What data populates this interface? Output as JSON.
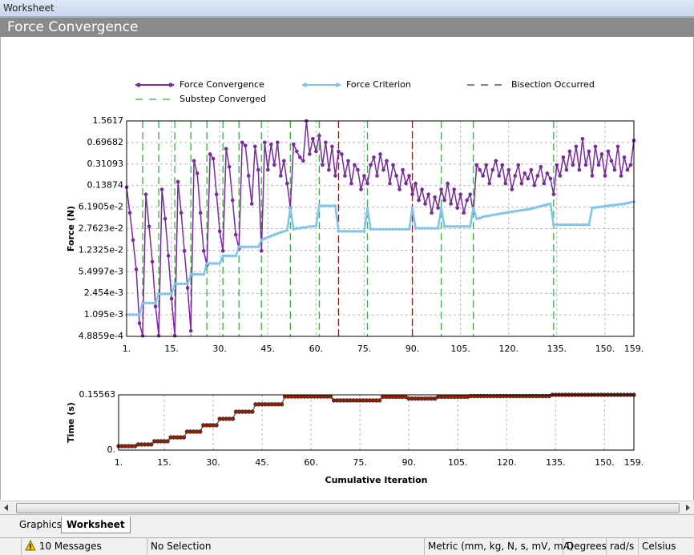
{
  "window_title": "Worksheet",
  "header": "Force Convergence",
  "tabs": [
    "Graphics",
    "Worksheet"
  ],
  "status": {
    "messages": "10 Messages",
    "selection": "No Selection",
    "units": "Metric (mm, kg, N, s, mV, mA)",
    "angle": "Degrees",
    "speed": "rad/s",
    "temperature": "Celsius"
  },
  "chart_data": [
    {
      "type": "line",
      "ylabel": "Force (N)",
      "yscale": "log",
      "grid": true,
      "legend": true,
      "xlim": [
        1,
        159
      ],
      "xticks": [
        {
          "value": 1,
          "label": "1."
        },
        {
          "value": 15,
          "label": "15."
        },
        {
          "value": 30,
          "label": "30."
        },
        {
          "value": 45,
          "label": "45."
        },
        {
          "value": 60,
          "label": "60."
        },
        {
          "value": 75,
          "label": "75."
        },
        {
          "value": 90,
          "label": "90."
        },
        {
          "value": 105,
          "label": "105."
        },
        {
          "value": 120,
          "label": "120."
        },
        {
          "value": 135,
          "label": "135."
        },
        {
          "value": 150,
          "label": "150."
        },
        {
          "value": 159,
          "label": "159."
        }
      ],
      "ylim": [
        0.00048859,
        1.5617
      ],
      "yticks": [
        {
          "value": 0.00048859,
          "label": "4.8859e-4"
        },
        {
          "value": 0.001095,
          "label": "1.095e-3"
        },
        {
          "value": 0.002454,
          "label": "2.454e-3"
        },
        {
          "value": 0.0054997,
          "label": "5.4997e-3"
        },
        {
          "value": 0.012325,
          "label": "1.2325e-2"
        },
        {
          "value": 0.027623,
          "label": "2.7623e-2"
        },
        {
          "value": 0.061905,
          "label": "6.1905e-2"
        },
        0.13874,
        0.31093,
        0.69682,
        1.5617
      ],
      "x": [
        1,
        2,
        3,
        4,
        5,
        6,
        7,
        8,
        9,
        10,
        11,
        12,
        13,
        14,
        15,
        16,
        17,
        18,
        19,
        20,
        21,
        22,
        23,
        24,
        25,
        26,
        27,
        28,
        29,
        30,
        31,
        32,
        33,
        34,
        35,
        36,
        37,
        38,
        39,
        40,
        41,
        42,
        43,
        44,
        45,
        46,
        47,
        48,
        49,
        50,
        51,
        52,
        53,
        54,
        55,
        56,
        57,
        58,
        59,
        60,
        61,
        62,
        63,
        64,
        65,
        66,
        67,
        68,
        69,
        70,
        71,
        72,
        73,
        74,
        75,
        76,
        77,
        78,
        79,
        80,
        81,
        82,
        83,
        84,
        85,
        86,
        87,
        88,
        89,
        90,
        91,
        92,
        93,
        94,
        95,
        96,
        97,
        98,
        99,
        100,
        101,
        102,
        103,
        104,
        105,
        106,
        107,
        108,
        109,
        110,
        111,
        112,
        113,
        114,
        115,
        116,
        117,
        118,
        119,
        120,
        121,
        122,
        123,
        124,
        125,
        126,
        127,
        128,
        129,
        130,
        131,
        132,
        133,
        134,
        135,
        136,
        137,
        138,
        139,
        140,
        141,
        142,
        143,
        144,
        145,
        146,
        147,
        148,
        149,
        150,
        151,
        152,
        153,
        154,
        155,
        156,
        157,
        158,
        159
      ],
      "series": [
        {
          "name": "Force Convergence",
          "color": "#7a2a9e",
          "values": [
            0.13,
            0.05,
            0.018,
            0.006,
            0.0008,
            0.0005,
            0.1,
            0.03,
            0.008,
            0.0015,
            0.0005,
            0.12,
            0.04,
            0.01,
            0.002,
            0.0005,
            0.16,
            0.05,
            0.012,
            0.003,
            0.0006,
            0.35,
            0.22,
            0.05,
            0.012,
            0.007,
            0.45,
            0.38,
            0.1,
            0.025,
            0.012,
            0.55,
            0.28,
            0.08,
            0.022,
            0.013,
            0.7,
            0.62,
            0.2,
            0.07,
            0.6,
            0.25,
            0.012,
            0.7,
            0.25,
            0.65,
            0.3,
            0.7,
            0.2,
            0.35,
            0.15,
            0.06,
            0.65,
            0.5,
            0.4,
            0.35,
            1.56,
            0.45,
            0.8,
            0.5,
            0.9,
            0.3,
            0.7,
            0.25,
            0.6,
            0.2,
            0.5,
            0.45,
            0.2,
            0.35,
            0.15,
            0.3,
            0.25,
            0.12,
            0.2,
            0.15,
            0.3,
            0.4,
            0.2,
            0.45,
            0.25,
            0.35,
            0.15,
            0.3,
            0.2,
            0.12,
            0.25,
            0.15,
            0.2,
            0.1,
            0.15,
            0.08,
            0.12,
            0.07,
            0.1,
            0.05,
            0.09,
            0.06,
            0.12,
            0.08,
            0.15,
            0.07,
            0.12,
            0.06,
            0.1,
            0.05,
            0.08,
            0.1,
            0.05,
            0.3,
            0.25,
            0.2,
            0.3,
            0.15,
            0.25,
            0.35,
            0.2,
            0.3,
            0.15,
            0.25,
            0.12,
            0.2,
            0.3,
            0.15,
            0.22,
            0.18,
            0.25,
            0.14,
            0.2,
            0.28,
            0.15,
            0.22,
            0.18,
            0.1,
            0.3,
            0.2,
            0.4,
            0.25,
            0.5,
            0.3,
            0.6,
            0.25,
            0.8,
            0.3,
            0.5,
            0.2,
            0.6,
            0.3,
            0.45,
            0.2,
            0.5,
            0.35,
            0.25,
            0.6,
            0.2,
            0.4,
            0.25,
            0.3,
            0.75
          ]
        },
        {
          "name": "Force Criterion",
          "color": "#7fc6ee",
          "values": [
            0.0011,
            0.0011,
            0.0011,
            0.0011,
            0.0011,
            0.0017,
            0.0017,
            0.0017,
            0.0017,
            0.0017,
            0.0024,
            0.0024,
            0.0024,
            0.0024,
            0.0024,
            0.0035,
            0.0035,
            0.0035,
            0.0035,
            0.0035,
            0.005,
            0.005,
            0.005,
            0.005,
            0.005,
            0.0075,
            0.0075,
            0.0075,
            0.0075,
            0.0075,
            0.01,
            0.01,
            0.01,
            0.01,
            0.01,
            0.014,
            0.014,
            0.014,
            0.014,
            0.014,
            0.014,
            0.014,
            0.018,
            0.019,
            0.02,
            0.021,
            0.022,
            0.023,
            0.024,
            0.025,
            0.026,
            0.06,
            0.027,
            0.028,
            0.028,
            0.029,
            0.029,
            0.03,
            0.03,
            0.031,
            0.065,
            0.065,
            0.065,
            0.065,
            0.065,
            0.065,
            0.025,
            0.025,
            0.025,
            0.025,
            0.025,
            0.025,
            0.025,
            0.025,
            0.025,
            0.06,
            0.027,
            0.027,
            0.027,
            0.027,
            0.027,
            0.027,
            0.027,
            0.027,
            0.027,
            0.027,
            0.027,
            0.027,
            0.027,
            0.06,
            0.028,
            0.028,
            0.028,
            0.028,
            0.028,
            0.028,
            0.028,
            0.028,
            0.06,
            0.03,
            0.03,
            0.03,
            0.03,
            0.03,
            0.03,
            0.03,
            0.03,
            0.03,
            0.06,
            0.04,
            0.041,
            0.043,
            0.044,
            0.045,
            0.046,
            0.047,
            0.048,
            0.049,
            0.05,
            0.051,
            0.052,
            0.053,
            0.054,
            0.055,
            0.056,
            0.057,
            0.058,
            0.06,
            0.062,
            0.064,
            0.066,
            0.068,
            0.07,
            0.032,
            0.032,
            0.032,
            0.032,
            0.032,
            0.032,
            0.032,
            0.032,
            0.032,
            0.032,
            0.032,
            0.032,
            0.06,
            0.061,
            0.062,
            0.063,
            0.064,
            0.065,
            0.066,
            0.067,
            0.068,
            0.069,
            0.07,
            0.072,
            0.074,
            0.076
          ]
        }
      ],
      "events": [
        {
          "name": "Bisection Occurred",
          "color": "#8b1a1a",
          "x": [
            67,
            90
          ]
        },
        {
          "name": "Substep Converged",
          "color": "#3cb043",
          "x": [
            6,
            11,
            16,
            21,
            26,
            31,
            36,
            43,
            52,
            61,
            76,
            99,
            109,
            134
          ]
        }
      ]
    },
    {
      "type": "line",
      "ylabel": "Time (s)",
      "xlabel": "Cumulative Iteration",
      "grid": true,
      "xlim": [
        1,
        159
      ],
      "xticks": [
        {
          "value": 1,
          "label": "1."
        },
        {
          "value": 15,
          "label": "15."
        },
        {
          "value": 30,
          "label": "30."
        },
        {
          "value": 45,
          "label": "45."
        },
        {
          "value": 60,
          "label": "60."
        },
        {
          "value": 75,
          "label": "75."
        },
        {
          "value": 90,
          "label": "90."
        },
        {
          "value": 105,
          "label": "105."
        },
        {
          "value": 120,
          "label": "120."
        },
        {
          "value": 135,
          "label": "135."
        },
        {
          "value": 150,
          "label": "150."
        },
        {
          "value": 159,
          "label": "159."
        }
      ],
      "ylim": [
        0,
        0.15563
      ],
      "yticks": [
        {
          "value": 0,
          "label": "0."
        },
        0.15563
      ],
      "x": [
        1,
        2,
        3,
        4,
        5,
        6,
        7,
        8,
        9,
        10,
        11,
        12,
        13,
        14,
        15,
        16,
        17,
        18,
        19,
        20,
        21,
        22,
        23,
        24,
        25,
        26,
        27,
        28,
        29,
        30,
        31,
        32,
        33,
        34,
        35,
        36,
        37,
        38,
        39,
        40,
        41,
        42,
        43,
        44,
        45,
        46,
        47,
        48,
        49,
        50,
        51,
        52,
        53,
        54,
        55,
        56,
        57,
        58,
        59,
        60,
        61,
        62,
        63,
        64,
        65,
        66,
        67,
        68,
        69,
        70,
        71,
        72,
        73,
        74,
        75,
        76,
        77,
        78,
        79,
        80,
        81,
        82,
        83,
        84,
        85,
        86,
        87,
        88,
        89,
        90,
        91,
        92,
        93,
        94,
        95,
        96,
        97,
        98,
        99,
        100,
        101,
        102,
        103,
        104,
        105,
        106,
        107,
        108,
        109,
        110,
        111,
        112,
        113,
        114,
        115,
        116,
        117,
        118,
        119,
        120,
        121,
        122,
        123,
        124,
        125,
        126,
        127,
        128,
        129,
        130,
        131,
        132,
        133,
        134,
        135,
        136,
        137,
        138,
        139,
        140,
        141,
        142,
        143,
        144,
        145,
        146,
        147,
        148,
        149,
        150,
        151,
        152,
        153,
        154,
        155,
        156,
        157,
        158,
        159
      ],
      "series": [
        {
          "color": "#9b1c00",
          "values": [
            0.011,
            0.011,
            0.011,
            0.011,
            0.011,
            0.011,
            0.016,
            0.016,
            0.016,
            0.016,
            0.016,
            0.025,
            0.025,
            0.025,
            0.025,
            0.025,
            0.036,
            0.036,
            0.036,
            0.036,
            0.036,
            0.052,
            0.052,
            0.052,
            0.052,
            0.052,
            0.07,
            0.07,
            0.07,
            0.07,
            0.07,
            0.088,
            0.088,
            0.088,
            0.088,
            0.088,
            0.108,
            0.108,
            0.108,
            0.108,
            0.108,
            0.108,
            0.129,
            0.129,
            0.129,
            0.129,
            0.129,
            0.129,
            0.129,
            0.129,
            0.129,
            0.151,
            0.151,
            0.151,
            0.151,
            0.151,
            0.151,
            0.151,
            0.151,
            0.151,
            0.151,
            0.151,
            0.151,
            0.151,
            0.151,
            0.151,
            0.14,
            0.14,
            0.14,
            0.14,
            0.14,
            0.14,
            0.14,
            0.14,
            0.14,
            0.14,
            0.14,
            0.14,
            0.14,
            0.14,
            0.14,
            0.15,
            0.15,
            0.15,
            0.15,
            0.15,
            0.15,
            0.15,
            0.15,
            0.145,
            0.145,
            0.145,
            0.145,
            0.145,
            0.145,
            0.145,
            0.145,
            0.145,
            0.15,
            0.15,
            0.15,
            0.15,
            0.15,
            0.15,
            0.15,
            0.15,
            0.15,
            0.15,
            0.152,
            0.152,
            0.152,
            0.152,
            0.152,
            0.152,
            0.152,
            0.152,
            0.152,
            0.152,
            0.152,
            0.152,
            0.152,
            0.152,
            0.152,
            0.152,
            0.152,
            0.152,
            0.152,
            0.152,
            0.152,
            0.152,
            0.152,
            0.152,
            0.152,
            0.15563,
            0.15563,
            0.15563,
            0.15563,
            0.15563,
            0.15563,
            0.15563,
            0.15563,
            0.15563,
            0.15563,
            0.15563,
            0.15563,
            0.15563,
            0.15563,
            0.15563,
            0.15563,
            0.15563,
            0.15563,
            0.15563,
            0.15563,
            0.15563,
            0.15563,
            0.15563,
            0.15563,
            0.15563,
            0.15563
          ]
        }
      ]
    }
  ]
}
